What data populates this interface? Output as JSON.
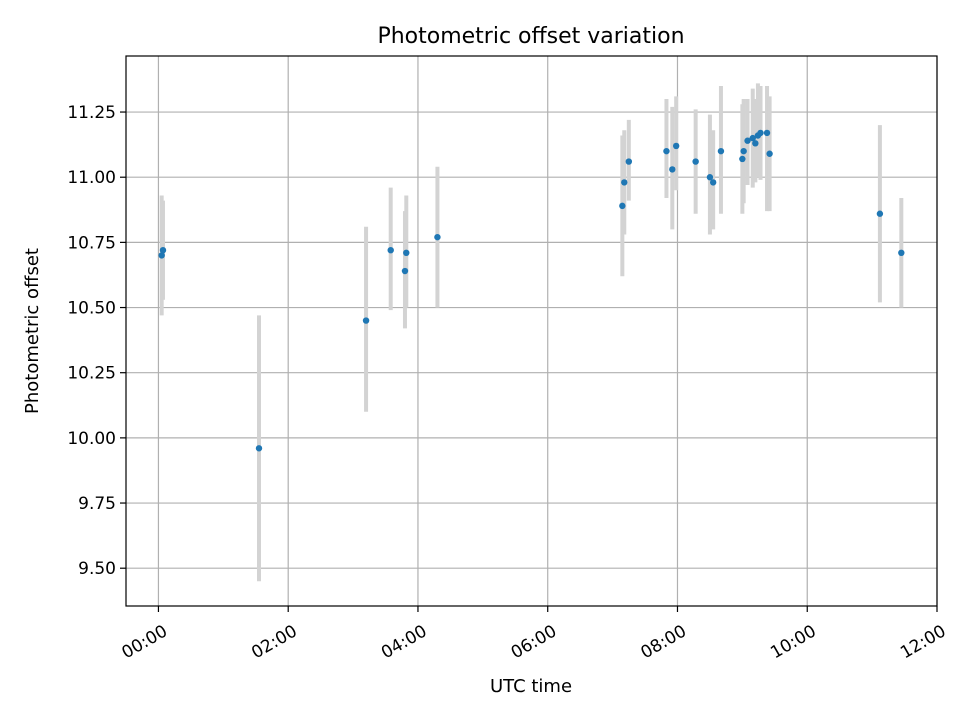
{
  "chart_data": {
    "type": "scatter",
    "title": "Photometric offset variation",
    "xlabel": "UTC time",
    "ylabel": "Photometric offset",
    "xlim_hours": [
      -0.5,
      12.0
    ],
    "ylim": [
      9.355,
      11.465
    ],
    "x_ticks": [
      {
        "value": 0,
        "label": "00:00"
      },
      {
        "value": 2,
        "label": "02:00"
      },
      {
        "value": 4,
        "label": "04:00"
      },
      {
        "value": 6,
        "label": "06:00"
      },
      {
        "value": 8,
        "label": "08:00"
      },
      {
        "value": 10,
        "label": "10:00"
      },
      {
        "value": 12,
        "label": "12:00"
      }
    ],
    "y_ticks": [
      {
        "value": 9.5,
        "label": "9.50"
      },
      {
        "value": 9.75,
        "label": "9.75"
      },
      {
        "value": 10.0,
        "label": "10.00"
      },
      {
        "value": 10.25,
        "label": "10.25"
      },
      {
        "value": 10.5,
        "label": "10.50"
      },
      {
        "value": 10.75,
        "label": "10.75"
      },
      {
        "value": 11.0,
        "label": "11.00"
      },
      {
        "value": 11.25,
        "label": "11.25"
      }
    ],
    "grid": true,
    "marker_color": "#1f77b4",
    "errorbar_color": "#d3d3d3",
    "points": [
      {
        "t": 0.05,
        "y": 10.7,
        "lo": 10.47,
        "hi": 10.93
      },
      {
        "t": 0.07,
        "y": 10.72,
        "lo": 10.53,
        "hi": 10.91
      },
      {
        "t": 1.55,
        "y": 9.96,
        "lo": 9.45,
        "hi": 10.47
      },
      {
        "t": 3.2,
        "y": 10.45,
        "lo": 10.1,
        "hi": 10.81
      },
      {
        "t": 3.58,
        "y": 10.72,
        "lo": 10.49,
        "hi": 10.96
      },
      {
        "t": 3.8,
        "y": 10.64,
        "lo": 10.42,
        "hi": 10.87
      },
      {
        "t": 3.82,
        "y": 10.71,
        "lo": 10.5,
        "hi": 10.93
      },
      {
        "t": 4.3,
        "y": 10.77,
        "lo": 10.5,
        "hi": 11.04
      },
      {
        "t": 7.15,
        "y": 10.89,
        "lo": 10.62,
        "hi": 11.16
      },
      {
        "t": 7.18,
        "y": 10.98,
        "lo": 10.78,
        "hi": 11.18
      },
      {
        "t": 7.25,
        "y": 11.06,
        "lo": 10.91,
        "hi": 11.22
      },
      {
        "t": 7.83,
        "y": 11.1,
        "lo": 10.92,
        "hi": 11.3
      },
      {
        "t": 7.92,
        "y": 11.03,
        "lo": 10.8,
        "hi": 11.27
      },
      {
        "t": 7.98,
        "y": 11.12,
        "lo": 10.95,
        "hi": 11.31
      },
      {
        "t": 8.28,
        "y": 11.06,
        "lo": 10.86,
        "hi": 11.26
      },
      {
        "t": 8.5,
        "y": 11.0,
        "lo": 10.78,
        "hi": 11.24
      },
      {
        "t": 8.55,
        "y": 10.98,
        "lo": 10.8,
        "hi": 11.18
      },
      {
        "t": 8.67,
        "y": 11.1,
        "lo": 10.86,
        "hi": 11.35
      },
      {
        "t": 9.0,
        "y": 11.07,
        "lo": 10.86,
        "hi": 11.28
      },
      {
        "t": 9.02,
        "y": 11.1,
        "lo": 10.9,
        "hi": 11.3
      },
      {
        "t": 9.08,
        "y": 11.14,
        "lo": 10.97,
        "hi": 11.3
      },
      {
        "t": 9.16,
        "y": 11.15,
        "lo": 10.96,
        "hi": 11.34
      },
      {
        "t": 9.2,
        "y": 11.13,
        "lo": 10.98,
        "hi": 11.3
      },
      {
        "t": 9.24,
        "y": 11.16,
        "lo": 11.0,
        "hi": 11.36
      },
      {
        "t": 9.28,
        "y": 11.17,
        "lo": 10.99,
        "hi": 11.35
      },
      {
        "t": 9.38,
        "y": 11.17,
        "lo": 10.87,
        "hi": 11.35
      },
      {
        "t": 9.42,
        "y": 11.09,
        "lo": 10.87,
        "hi": 11.31
      },
      {
        "t": 11.12,
        "y": 10.86,
        "lo": 10.52,
        "hi": 11.2
      },
      {
        "t": 11.45,
        "y": 10.71,
        "lo": 10.5,
        "hi": 10.92
      }
    ]
  }
}
